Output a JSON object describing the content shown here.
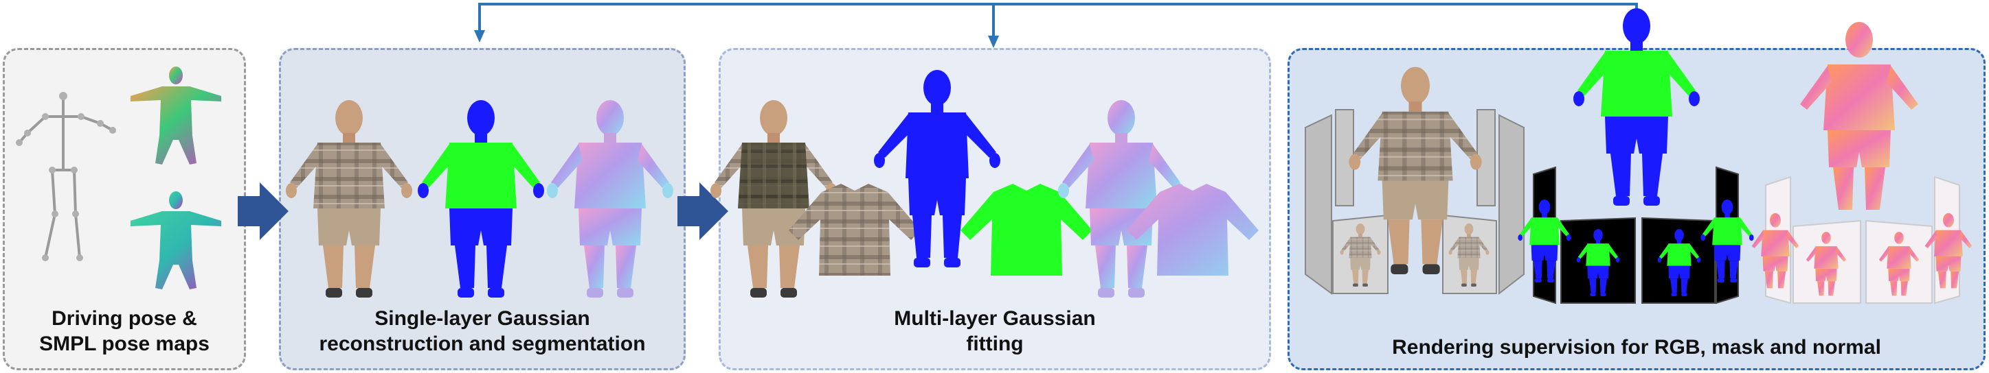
{
  "panels": [
    {
      "id": "pose",
      "caption_lines": [
        "Driving pose &",
        "SMPL pose maps"
      ]
    },
    {
      "id": "single",
      "caption_lines": [
        "Single-layer Gaussian",
        "reconstruction and segmentation"
      ]
    },
    {
      "id": "multi",
      "caption_lines": [
        "Multi-layer Gaussian",
        "fitting"
      ]
    },
    {
      "id": "render",
      "caption_lines": [
        "Rendering supervision for RGB, mask and normal"
      ]
    }
  ],
  "colors": {
    "arrow": "#2f5597",
    "feedback_line": "#2e75b6",
    "mask_body": "#1a1aff",
    "mask_shirt": "#22ff22",
    "skin_rgb": "#c8a07e",
    "shirt_plaid": "#9a8a78",
    "shorts_rgb": "#b8a48a",
    "normal_pink": "#e49ad6",
    "normal_violet": "#9c90e8",
    "normal_cyan": "#88d8f0",
    "pose_orange": "#f06a48",
    "pose_green": "#3cc87a",
    "pose_magenta": "#c848c0"
  },
  "icons": [
    "skeleton-icon",
    "pose-map-icon",
    "human-rgb-icon",
    "human-mask-icon",
    "human-normal-icon",
    "shirt-icon",
    "camera-view-icon",
    "right-arrow-icon"
  ]
}
